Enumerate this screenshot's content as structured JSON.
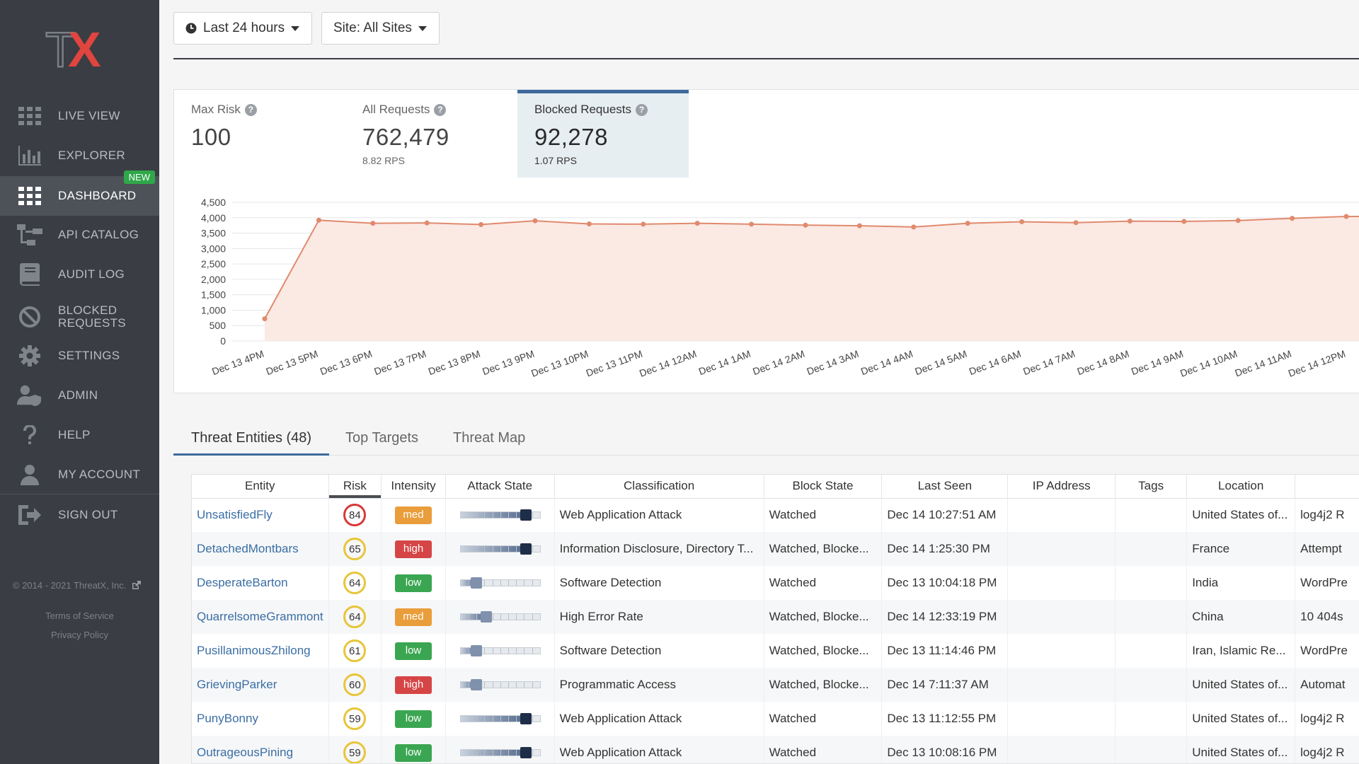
{
  "sidebar": {
    "logo_text": "TX",
    "items": [
      {
        "label": "LIVE VIEW",
        "icon": "grid-icon"
      },
      {
        "label": "EXPLORER",
        "icon": "bar-chart-icon"
      },
      {
        "label": "DASHBOARD",
        "icon": "grid-icon",
        "badge": "NEW",
        "active": true
      },
      {
        "label": "API CATALOG",
        "icon": "sitemap-icon"
      },
      {
        "label": "AUDIT LOG",
        "icon": "book-icon"
      },
      {
        "label": "BLOCKED REQUESTS",
        "icon": "ban-icon"
      },
      {
        "label": "SETTINGS",
        "icon": "gear-icon"
      },
      {
        "label": "ADMIN",
        "icon": "user-shield-icon"
      },
      {
        "label": "HELP",
        "icon": "question-icon"
      },
      {
        "label": "MY ACCOUNT",
        "icon": "user-icon"
      },
      {
        "label": "SIGN OUT",
        "icon": "sign-out-icon"
      }
    ],
    "copyright": "© 2014 - 2021 ThreatX, Inc.",
    "terms": "Terms of Service",
    "privacy": "Privacy Policy"
  },
  "filters": {
    "time": "Last 24 hours",
    "site": "Site: All Sites"
  },
  "stats": [
    {
      "label": "Max Risk",
      "value": "100",
      "sub": ""
    },
    {
      "label": "All Requests",
      "value": "762,479",
      "sub": "8.82 RPS"
    },
    {
      "label": "Blocked Requests",
      "value": "92,278",
      "sub": "1.07 RPS",
      "selected": true
    }
  ],
  "colors": {
    "line": "#e08a6e",
    "area": "#fbe9e4",
    "accent": "#3d6a9b",
    "low": "#3aa651",
    "med": "#e99d3b",
    "high": "#d64545",
    "risk_yellow": "#e8c53a",
    "risk_red": "#d9383a"
  },
  "chart_data": {
    "type": "area",
    "y_ticks": [
      "4,500",
      "4,000",
      "3,500",
      "3,000",
      "2,500",
      "2,000",
      "1,500",
      "1,000",
      "500",
      "0"
    ],
    "ylim": [
      0,
      4500
    ],
    "x": [
      "Dec 13 4PM",
      "Dec 13 5PM",
      "Dec 13 6PM",
      "Dec 13 7PM",
      "Dec 13 8PM",
      "Dec 13 9PM",
      "Dec 13 10PM",
      "Dec 13 11PM",
      "Dec 14 12AM",
      "Dec 14 1AM",
      "Dec 14 2AM",
      "Dec 14 3AM",
      "Dec 14 4AM",
      "Dec 14 5AM",
      "Dec 14 6AM",
      "Dec 14 7AM",
      "Dec 14 8AM",
      "Dec 14 9AM",
      "Dec 14 10AM",
      "Dec 14 11AM",
      "Dec 14 12PM"
    ],
    "values": [
      720,
      3920,
      3820,
      3830,
      3780,
      3900,
      3800,
      3790,
      3820,
      3790,
      3760,
      3740,
      3700,
      3820,
      3870,
      3840,
      3890,
      3880,
      3910,
      3980,
      4040
    ],
    "grid": true,
    "xlabel": "",
    "ylabel": ""
  },
  "tabs": [
    {
      "label": "Threat Entities (48)",
      "active": true
    },
    {
      "label": "Top Targets"
    },
    {
      "label": "Threat Map"
    }
  ],
  "table": {
    "headers": [
      "Entity",
      "Risk",
      "Intensity",
      "Attack State",
      "Classification",
      "Block State",
      "Last Seen",
      "IP Address",
      "Tags",
      "Location",
      ""
    ],
    "rows": [
      {
        "entity": "UnsatisfiedFly",
        "risk": "84",
        "intensity": "med",
        "attack": 0.82,
        "classification": "Web Application Attack",
        "block": "Watched",
        "last_seen": "Dec 14 10:27:51 AM",
        "ip": "",
        "tags": "",
        "location": "United States of...",
        "extra": "log4j2 R"
      },
      {
        "entity": "DetachedMontbars",
        "risk": "65",
        "intensity": "high",
        "attack": 0.82,
        "classification": "Information Disclosure, Directory T...",
        "block": "Watched, Blocke...",
        "last_seen": "Dec 14 1:25:30 PM",
        "ip": "",
        "tags": "",
        "location": "France",
        "extra": "Attempt"
      },
      {
        "entity": "DesperateBarton",
        "risk": "64",
        "intensity": "low",
        "attack": 0.2,
        "classification": "Software Detection",
        "block": "Watched",
        "last_seen": "Dec 13 10:04:18 PM",
        "ip": "",
        "tags": "",
        "location": "India",
        "extra": "WordPre"
      },
      {
        "entity": "QuarrelsomeGrammont",
        "risk": "64",
        "intensity": "med",
        "attack": 0.32,
        "classification": "High Error Rate",
        "block": "Watched, Blocke...",
        "last_seen": "Dec 14 12:33:19 PM",
        "ip": "",
        "tags": "",
        "location": "China",
        "extra": "10 404s"
      },
      {
        "entity": "PusillanimousZhilong",
        "risk": "61",
        "intensity": "low",
        "attack": 0.2,
        "classification": "Software Detection",
        "block": "Watched, Blocke...",
        "last_seen": "Dec 13 11:14:46 PM",
        "ip": "",
        "tags": "",
        "location": "Iran, Islamic Re...",
        "extra": "WordPre"
      },
      {
        "entity": "GrievingParker",
        "risk": "60",
        "intensity": "high",
        "attack": 0.2,
        "classification": "Programmatic Access",
        "block": "Watched, Blocke...",
        "last_seen": "Dec 14 7:11:37 AM",
        "ip": "",
        "tags": "",
        "location": "United States of...",
        "extra": "Automat"
      },
      {
        "entity": "PunyBonny",
        "risk": "59",
        "intensity": "low",
        "attack": 0.82,
        "classification": "Web Application Attack",
        "block": "Watched",
        "last_seen": "Dec 13 11:12:55 PM",
        "ip": "",
        "tags": "",
        "location": "United States of...",
        "extra": "log4j2 R"
      },
      {
        "entity": "OutrageousPining",
        "risk": "59",
        "intensity": "low",
        "attack": 0.82,
        "classification": "Web Application Attack",
        "block": "Watched",
        "last_seen": "Dec 13 10:08:16 PM",
        "ip": "",
        "tags": "",
        "location": "United States of...",
        "extra": "log4j2 R"
      }
    ]
  }
}
